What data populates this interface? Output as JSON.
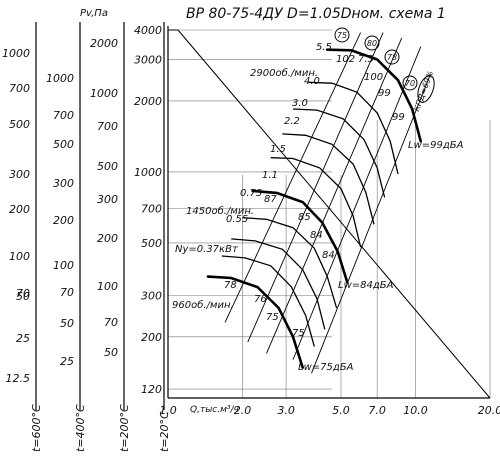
{
  "chart_data": {
    "type": "line",
    "title": "ВР 80-75-4ДУ D=1.05Dном. схема 1",
    "xlabel": "Q,тыс.м³/ч",
    "ylabel": "Pv,Па",
    "x_axis": {
      "scale": "log",
      "ticks": [
        "1.0",
        "2.0",
        "3.0",
        "5.0",
        "7.0",
        "10.0",
        "20.0"
      ],
      "tick_values": [
        1,
        2,
        3,
        5,
        7,
        10,
        20
      ]
    },
    "y_axis": {
      "scale": "log",
      "ticks": [
        "4000",
        "3000",
        "2000",
        "1000",
        "700",
        "500",
        "300",
        "200",
        "120"
      ],
      "tick_values": [
        4000,
        3000,
        2000,
        1000,
        700,
        500,
        300,
        200,
        120
      ]
    },
    "aux_scales": [
      {
        "label": "t=600°C",
        "ticks": [
          "1000",
          "700",
          "500",
          "300",
          "200",
          "100",
          "70",
          "50",
          "25",
          "12.5"
        ]
      },
      {
        "label": "t=400°C",
        "ticks": [
          "1000",
          "700",
          "500",
          "300",
          "200",
          "100",
          "70",
          "50",
          "25"
        ]
      },
      {
        "label": "t=200°C",
        "ticks": [
          "2000",
          "1000",
          "700",
          "500",
          "300",
          "200",
          "100",
          "70",
          "50"
        ]
      },
      {
        "label": "t=20°C",
        "ticks": []
      }
    ],
    "speed_curves": [
      {
        "name": "2900об./мин.",
        "x": [
          4.4,
          5.5,
          7.0,
          8.5,
          9.7,
          10.5
        ],
        "y": [
          3300,
          3280,
          3000,
          2450,
          1850,
          1350
        ]
      },
      {
        "name": "1450об./мин.",
        "x": [
          2.2,
          2.75,
          3.5,
          4.2,
          4.85,
          5.3
        ],
        "y": [
          830,
          815,
          745,
          610,
          460,
          340
        ]
      },
      {
        "name": "960об./мин.",
        "x": [
          1.45,
          1.8,
          2.3,
          2.8,
          3.2,
          3.5
        ],
        "y": [
          360,
          355,
          325,
          265,
          200,
          148
        ]
      }
    ],
    "power_labels": [
      "5.5",
      "4.0",
      "3.0",
      "2.2",
      "1.5",
      "1.1",
      "0.75",
      "0.55",
      "Ny=0.37кВт"
    ],
    "efficiency_labels": [
      "КПД=69%",
      "75",
      "80",
      "78",
      "70"
    ],
    "noise_labels": [
      "Lw=99дБА",
      "Lw=84дБА",
      "Lw=75дБА"
    ],
    "curve_value_labels": [
      "102",
      "7.5",
      "100",
      "99",
      "99",
      "87",
      "85",
      "84",
      "84",
      "78",
      "76",
      "75",
      "75"
    ]
  }
}
